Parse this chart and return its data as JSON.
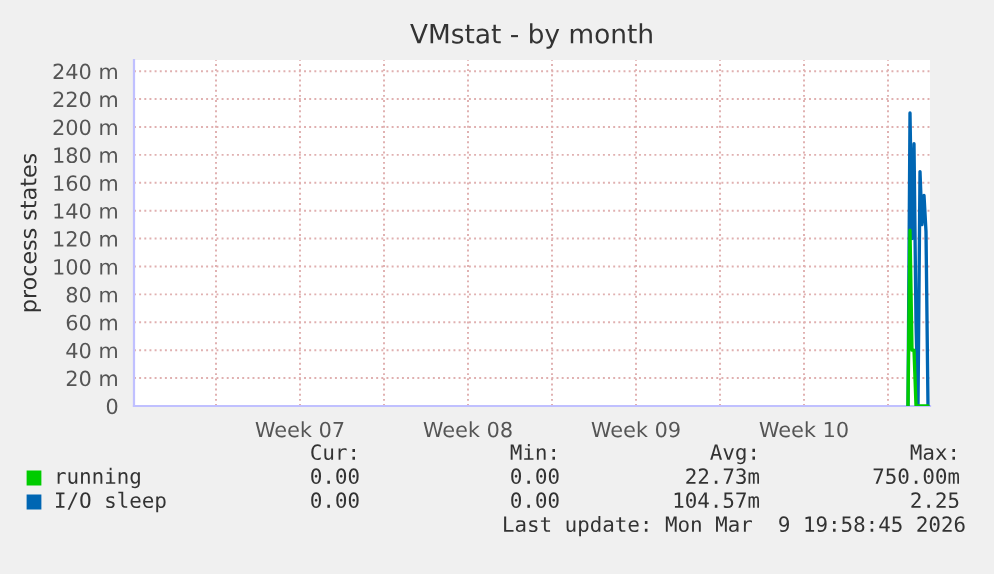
{
  "chart_data": {
    "type": "line",
    "title": "VMstat - by month",
    "ylabel": "process states",
    "x": [
      "2026-03-09T20:00",
      "2026-03-09T22:00",
      "2026-03-10T00:00",
      "2026-03-10T02:00",
      "2026-03-10T04:00",
      "2026-03-10T06:00",
      "2026-03-10T08:00",
      "2026-03-10T10:00",
      "2026-03-10T12:00",
      "2026-03-10T14:00",
      "2026-03-10T16:00"
    ],
    "series": [
      {
        "name": "running",
        "color": "#00cc00",
        "values": [
          0,
          126,
          40,
          40,
          0,
          0,
          0,
          0,
          0,
          0,
          0
        ]
      },
      {
        "name": "I/O sleep",
        "color": "#0066b3",
        "values": [
          0,
          210,
          120,
          188,
          60,
          0,
          168,
          130,
          151,
          125,
          0
        ]
      }
    ],
    "xlim": [
      "2026-02-05T14:00",
      "2026-03-10T18:00"
    ],
    "xticks": [
      {
        "value": "2026-02-09",
        "label": null
      },
      {
        "value": "2026-02-12T12:00",
        "label": "Week 07"
      },
      {
        "value": "2026-02-16",
        "label": null
      },
      {
        "value": "2026-02-19T12:00",
        "label": "Week 08"
      },
      {
        "value": "2026-02-23",
        "label": null
      },
      {
        "value": "2026-02-26T12:00",
        "label": "Week 09"
      },
      {
        "value": "2026-03-02",
        "label": null
      },
      {
        "value": "2026-03-05T12:00",
        "label": "Week 10"
      },
      {
        "value": "2026-03-09",
        "label": null
      }
    ],
    "ylim": [
      0,
      248
    ],
    "yticks": [
      0,
      {
        "value": 20,
        "label": "20 m"
      },
      {
        "value": 40,
        "label": "40 m"
      },
      {
        "value": 60,
        "label": "60 m"
      },
      {
        "value": 80,
        "label": "80 m"
      },
      {
        "value": 100,
        "label": "100 m"
      },
      {
        "value": 120,
        "label": "120 m"
      },
      {
        "value": 140,
        "label": "140 m"
      },
      {
        "value": 160,
        "label": "160 m"
      },
      {
        "value": 180,
        "label": "180 m"
      },
      {
        "value": 200,
        "label": "200 m"
      },
      {
        "value": 220,
        "label": "220 m"
      },
      {
        "value": 240,
        "label": "240 m"
      }
    ],
    "grid": true,
    "legend": "bottom",
    "annotations": [
      "Cur:",
      "Min:",
      "Avg:",
      "Max:",
      "0.00",
      "0.00",
      "22.73m",
      "750.00m",
      "0.00",
      "0.00",
      "104.57m",
      "2.25",
      "Last update: Mon Mar  9 19:58:45 2026"
    ]
  }
}
